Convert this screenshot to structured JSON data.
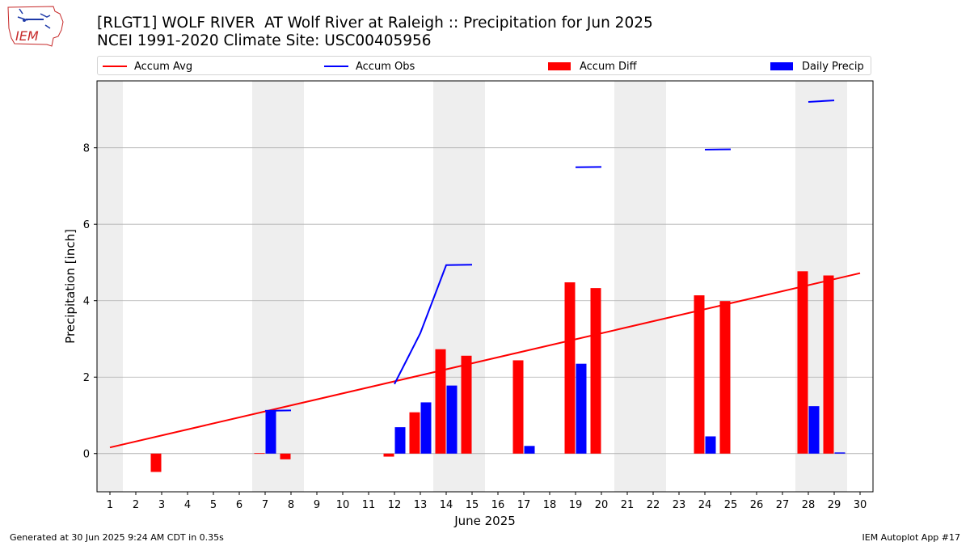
{
  "header": {
    "title_line1": "[RLGT1] WOLF RIVER  AT Wolf River at Raleigh :: Precipitation for Jun 2025",
    "title_line2": "NCEI 1991-2020 Climate Site: USC00405956"
  },
  "logo": {
    "text": "IEM"
  },
  "footer": {
    "left": "Generated at 30 Jun 2025 9:24 AM CDT in 0.35s",
    "right": "IEM Autoplot App #17"
  },
  "colors": {
    "avg": "#ff0000",
    "obs": "#0000ff",
    "diff": "#ff0000",
    "daily": "#0000ff",
    "weekend": "#eeeeee",
    "grid": "#b0b0b0"
  },
  "chart_data": {
    "type": "bar",
    "title": "[RLGT1] WOLF RIVER  AT Wolf River at Raleigh :: Precipitation for Jun 2025",
    "subtitle": "NCEI 1991-2020 Climate Site: USC00405956",
    "xlabel": "June 2025",
    "ylabel": "Precipitation [inch]",
    "xlim": [
      0.5,
      30.5
    ],
    "ylim": [
      -1,
      9.75
    ],
    "yticks": [
      0,
      2,
      4,
      6,
      8
    ],
    "grid": "horizontal",
    "legend_placement": "top",
    "legend": [
      "Accum Avg",
      "Accum Obs",
      "Accum Diff",
      "Daily Precip"
    ],
    "days": [
      1,
      2,
      3,
      4,
      5,
      6,
      7,
      8,
      9,
      10,
      11,
      12,
      13,
      14,
      15,
      16,
      17,
      18,
      19,
      20,
      21,
      22,
      23,
      24,
      25,
      26,
      27,
      28,
      29,
      30
    ],
    "weekend_spans": [
      [
        0.5,
        1.5
      ],
      [
        6.5,
        8.5
      ],
      [
        13.5,
        15.5
      ],
      [
        20.5,
        22.5
      ],
      [
        27.5,
        29.5
      ]
    ],
    "series": [
      {
        "name": "Accum Avg",
        "kind": "line",
        "x": [
          1,
          30
        ],
        "y": [
          0.16,
          4.72
        ]
      },
      {
        "name": "Accum Obs",
        "kind": "line",
        "segments": [
          {
            "x": [
              7,
              8
            ],
            "y": [
              1.12,
              1.13
            ]
          },
          {
            "x": [
              12,
              13,
              14,
              15
            ],
            "y": [
              1.82,
              3.15,
              4.93,
              4.94
            ]
          },
          {
            "x": [
              19,
              20
            ],
            "y": [
              7.49,
              7.5
            ]
          },
          {
            "x": [
              24,
              25
            ],
            "y": [
              7.95,
              7.96
            ]
          },
          {
            "x": [
              28,
              29
            ],
            "y": [
              9.2,
              9.24
            ]
          }
        ]
      },
      {
        "name": "Accum Diff",
        "kind": "bar",
        "x": [
          3,
          7,
          8,
          12,
          13,
          14,
          15,
          17,
          19,
          20,
          24,
          25,
          28,
          29
        ],
        "values": [
          -0.48,
          0.01,
          -0.15,
          -0.08,
          1.08,
          2.73,
          2.56,
          2.44,
          4.48,
          4.33,
          4.14,
          3.99,
          4.77,
          4.66
        ]
      },
      {
        "name": "Daily Precip",
        "kind": "bar",
        "x": [
          7,
          12,
          13,
          14,
          17,
          19,
          24,
          28,
          29
        ],
        "values": [
          1.12,
          0.69,
          1.34,
          1.78,
          0.2,
          2.35,
          0.45,
          1.24,
          0.03
        ]
      }
    ]
  }
}
